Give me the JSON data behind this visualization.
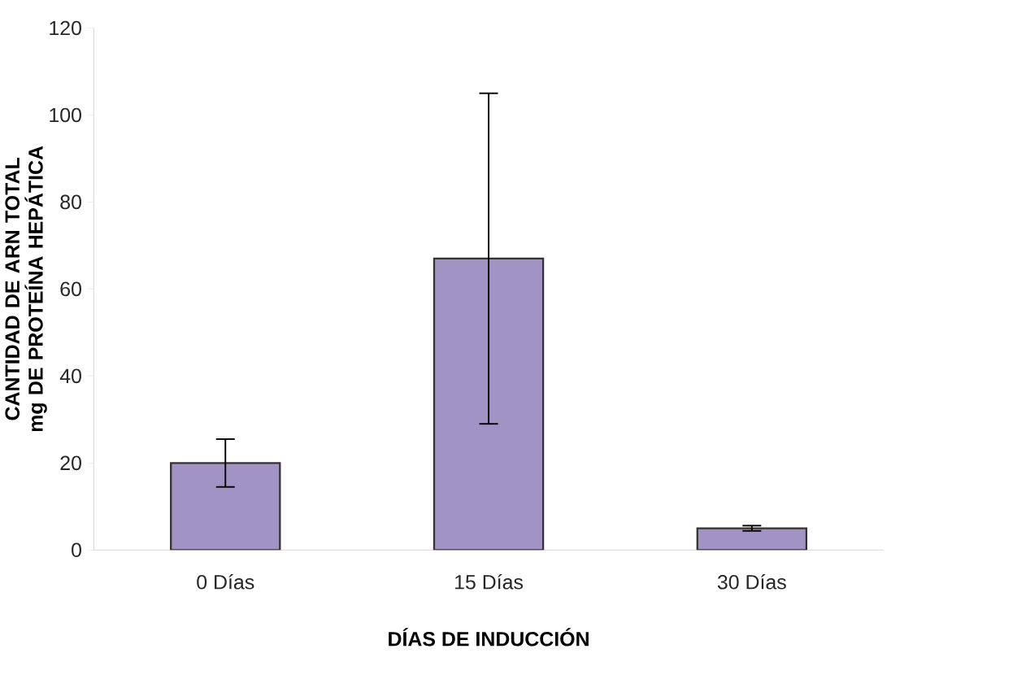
{
  "chart_data": {
    "type": "bar",
    "xlabel": "DÍAS DE INDUCCIÓN",
    "ylabel": "CANTIDAD DE ARN TOTAL mg DE PROTEÍNA HEPÁTICA",
    "categories": [
      "0 Días",
      "15 Días",
      "30 Días"
    ],
    "values": [
      20,
      67,
      5
    ],
    "errors": [
      5.5,
      38,
      0.6
    ],
    "color": "#a193c4",
    "ylim": [
      0,
      120
    ],
    "yticks": [
      0,
      20,
      40,
      60,
      80,
      100,
      120
    ]
  }
}
